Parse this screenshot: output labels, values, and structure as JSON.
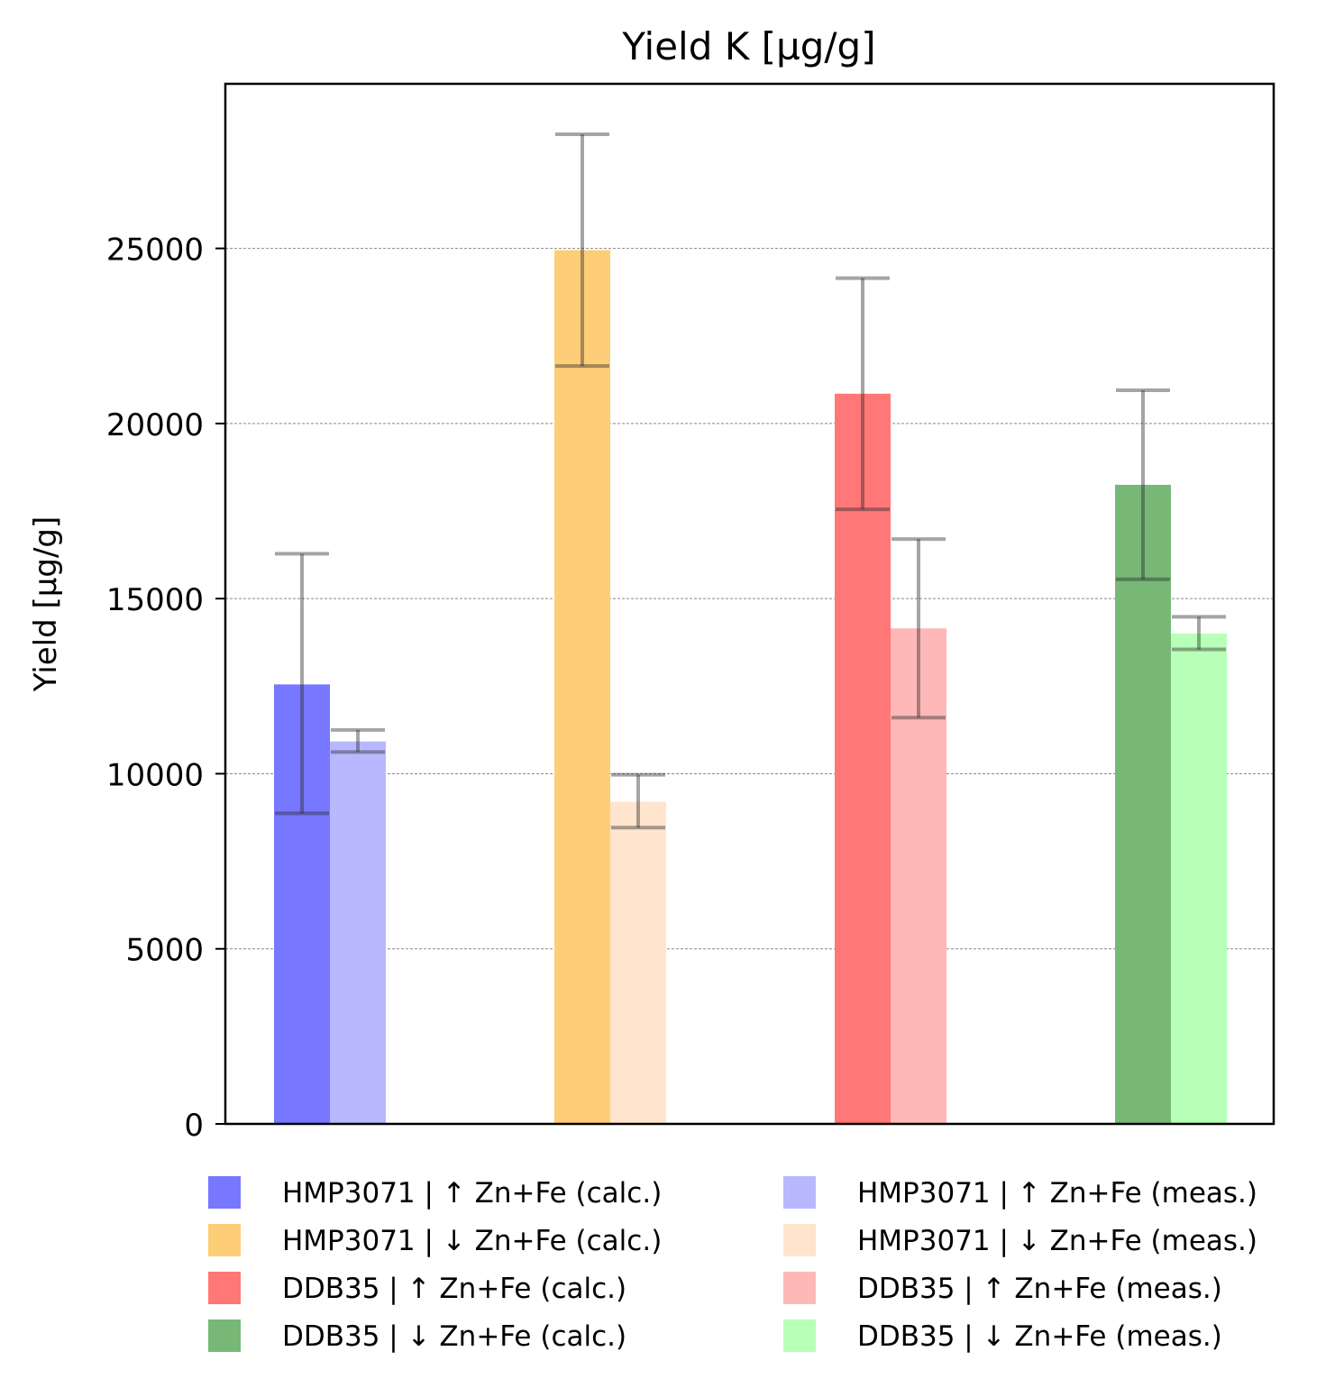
{
  "chart_data": {
    "type": "bar",
    "title": "Yield K [µg/g]",
    "xlabel": "",
    "ylabel": "Yield [µg/g]",
    "ylim": [
      0,
      29700
    ],
    "yticks": [
      0,
      5000,
      10000,
      15000,
      20000,
      25000
    ],
    "grid": "horizontal dashed",
    "legend_position": "below plot, two columns",
    "groups": 4,
    "series": [
      {
        "name": "HMP3071 | ↑ Zn+Fe (calc.)",
        "color": "#7777ff",
        "group": 0,
        "slot": 0,
        "value": 12550,
        "err_low": 8870,
        "err_high": 16280
      },
      {
        "name": "HMP3071 | ↓ Zn+Fe (calc.)",
        "color": "#fecd77",
        "group": 1,
        "slot": 0,
        "value": 24950,
        "err_low": 21640,
        "err_high": 28260
      },
      {
        "name": "DDB35 | ↑ Zn+Fe (calc.)",
        "color": "#ff7777",
        "group": 2,
        "slot": 0,
        "value": 20850,
        "err_low": 17550,
        "err_high": 24150
      },
      {
        "name": "DDB35 | ↓ Zn+Fe (calc.)",
        "color": "#77b877",
        "group": 3,
        "slot": 0,
        "value": 18250,
        "err_low": 15550,
        "err_high": 20950
      },
      {
        "name": "HMP3071 | ↑ Zn+Fe (meas.)",
        "color": "#b8b8ff",
        "group": 0,
        "slot": 1,
        "value": 10920,
        "err_low": 10620,
        "err_high": 11250
      },
      {
        "name": "HMP3071 | ↓ Zn+Fe (meas.)",
        "color": "#ffe5ce",
        "group": 1,
        "slot": 1,
        "value": 9200,
        "err_low": 8460,
        "err_high": 9970
      },
      {
        "name": "DDB35 | ↑ Zn+Fe (meas.)",
        "color": "#ffb8b8",
        "group": 2,
        "slot": 1,
        "value": 14150,
        "err_low": 11600,
        "err_high": 16700
      },
      {
        "name": "DDB35 | ↓ Zn+Fe (meas.)",
        "color": "#b8ffb8",
        "group": 3,
        "slot": 1,
        "value": 14000,
        "err_low": 13550,
        "err_high": 14480
      }
    ]
  }
}
